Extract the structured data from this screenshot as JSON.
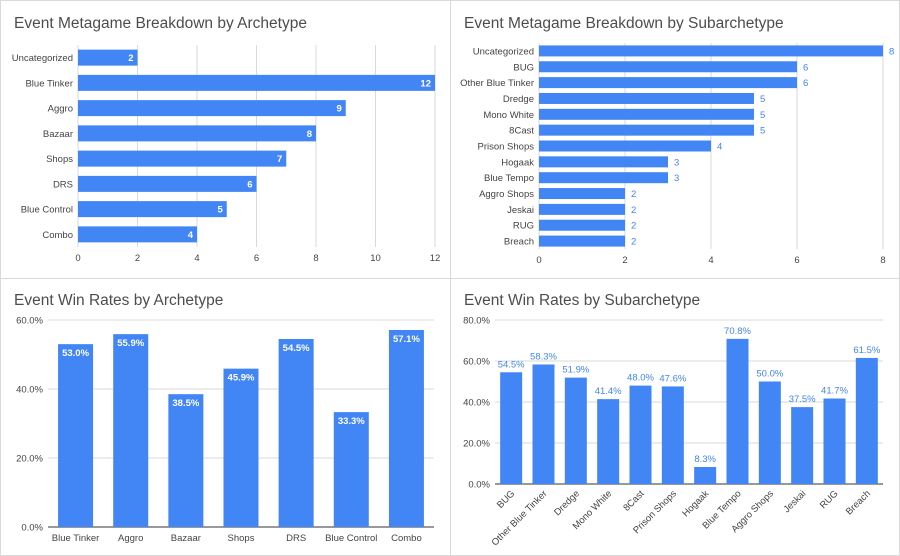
{
  "colors": {
    "bar": "#4285f4",
    "grid": "#d9d9d9",
    "text": "#444444",
    "title": "#4d4d4d",
    "label_inside": "#ffffff",
    "label_outside": "#4285f4"
  },
  "chart_data": [
    {
      "type": "bar",
      "orientation": "horizontal",
      "title": "Event Metagame Breakdown by Archetype",
      "categories": [
        "Uncategorized",
        "Blue Tinker",
        "Aggro",
        "Bazaar",
        "Shops",
        "DRS",
        "Blue Control",
        "Combo"
      ],
      "values": [
        2,
        12,
        9,
        8,
        7,
        6,
        5,
        4
      ],
      "xlim": [
        0,
        12
      ],
      "ticks": [
        0,
        2,
        4,
        6,
        8,
        10,
        12
      ],
      "tick_labels": [
        "0",
        "2",
        "4",
        "6",
        "8",
        "10",
        "12"
      ],
      "value_labels": [
        "2",
        "12",
        "9",
        "8",
        "7",
        "6",
        "5",
        "4"
      ],
      "label_position": "inside",
      "grid": true,
      "legend": "none"
    },
    {
      "type": "bar",
      "orientation": "horizontal",
      "title": "Event Metagame Breakdown by Subarchetype",
      "categories": [
        "Uncategorized",
        "BUG",
        "Other Blue Tinker",
        "Dredge",
        "Mono White",
        "8Cast",
        "Prison Shops",
        "Hogaak",
        "Blue Tempo",
        "Aggro Shops",
        "Jeskai",
        "RUG",
        "Breach"
      ],
      "values": [
        8,
        6,
        6,
        5,
        5,
        5,
        4,
        3,
        3,
        2,
        2,
        2,
        2
      ],
      "xlim": [
        0,
        8
      ],
      "ticks": [
        0,
        2,
        4,
        6,
        8
      ],
      "tick_labels": [
        "0",
        "2",
        "4",
        "6",
        "8"
      ],
      "value_labels": [
        "8",
        "6",
        "6",
        "5",
        "5",
        "5",
        "4",
        "3",
        "3",
        "2",
        "2",
        "2",
        "2"
      ],
      "label_position": "outside",
      "grid": true,
      "legend": "none"
    },
    {
      "type": "bar",
      "orientation": "vertical",
      "title": "Event Win Rates by Archetype",
      "categories": [
        "Blue Tinker",
        "Aggro",
        "Bazaar",
        "Shops",
        "DRS",
        "Blue Control",
        "Combo"
      ],
      "values": [
        53.0,
        55.9,
        38.5,
        45.9,
        54.5,
        33.3,
        57.1
      ],
      "ylim": [
        0,
        60
      ],
      "ticks": [
        0,
        20,
        40,
        60
      ],
      "tick_labels": [
        "0.0%",
        "20.0%",
        "40.0%",
        "60.0%"
      ],
      "value_labels": [
        "53.0%",
        "55.9%",
        "38.5%",
        "45.9%",
        "54.5%",
        "33.3%",
        "57.1%"
      ],
      "label_position": "inside",
      "grid": true,
      "legend": "none"
    },
    {
      "type": "bar",
      "orientation": "vertical",
      "title": "Event Win Rates by Subarchetype",
      "categories": [
        "BUG",
        "Other Blue Tinker",
        "Dredge",
        "Mono White",
        "8Cast",
        "Prison Shops",
        "Hogaak",
        "Blue Tempo",
        "Aggro Shops",
        "Jeskai",
        "RUG",
        "Breach"
      ],
      "values": [
        54.5,
        58.3,
        51.9,
        41.4,
        48.0,
        47.6,
        8.3,
        70.8,
        50.0,
        37.5,
        41.7,
        61.5
      ],
      "ylim": [
        0,
        80
      ],
      "ticks": [
        0,
        20,
        40,
        60,
        80
      ],
      "tick_labels": [
        "0.0%",
        "20.0%",
        "40.0%",
        "60.0%",
        "80.0%"
      ],
      "value_labels": [
        "54.5%",
        "58.3%",
        "51.9%",
        "41.4%",
        "48.0%",
        "47.6%",
        "8.3%",
        "70.8%",
        "50.0%",
        "37.5%",
        "41.7%",
        "61.5%"
      ],
      "label_position": "outside",
      "rotated_categories": true,
      "grid": true,
      "legend": "none"
    }
  ]
}
